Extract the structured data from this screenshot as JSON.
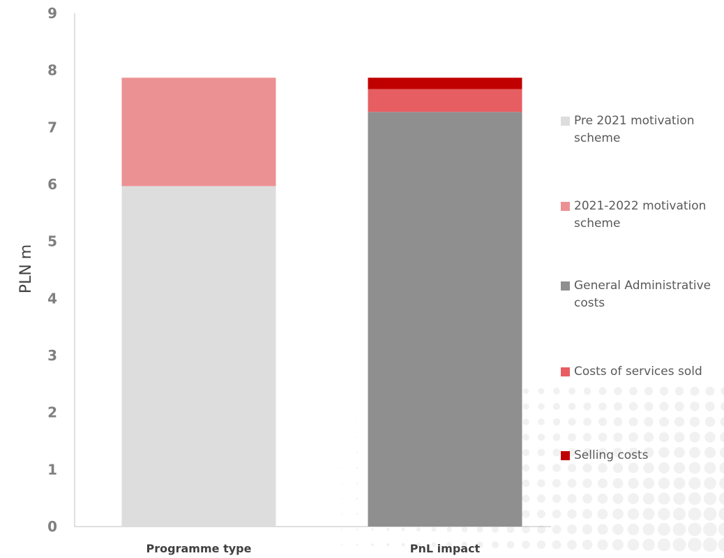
{
  "chart_data": {
    "type": "bar",
    "stacked": true,
    "title": "",
    "xlabel": "",
    "ylabel": "PLN m",
    "ylim": [
      0,
      9
    ],
    "yticks": [
      0,
      1,
      2,
      3,
      4,
      5,
      6,
      7,
      8,
      9
    ],
    "grid": false,
    "legend_position": "right",
    "categories": [
      "Programme type",
      "PnL impact"
    ],
    "series": [
      {
        "name": "Pre 2021 motivation scheme",
        "color": "#dddddd",
        "values": [
          5.97,
          0
        ]
      },
      {
        "name": "2021-2022 motivation scheme",
        "color": "#ec9193",
        "values": [
          1.9,
          0
        ]
      },
      {
        "name": "General Administrative costs",
        "color": "#8f8f8f",
        "values": [
          0,
          7.27
        ]
      },
      {
        "name": "Costs of services sold",
        "color": "#e65e62",
        "values": [
          0,
          0.4
        ]
      },
      {
        "name": "Selling costs",
        "color": "#c00000",
        "values": [
          0,
          0.2
        ]
      }
    ]
  }
}
